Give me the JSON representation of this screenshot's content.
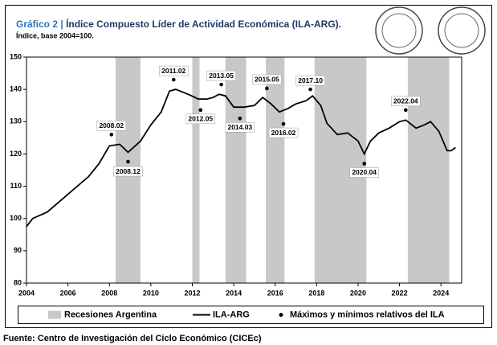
{
  "chart_data": {
    "type": "line",
    "title_label": "Gráfico 2 |",
    "title": "Índice Compuesto Líder de Actividad Económica (ILA-ARG).",
    "subtitle": "Índice, base 2004=100.",
    "source": "Fuente: Centro de Investigación del Ciclo Económico (CICEc)",
    "xlim": [
      2004,
      2025
    ],
    "xticks": [
      2004,
      2006,
      2008,
      2010,
      2012,
      2014,
      2016,
      2018,
      2020,
      2022,
      2024
    ],
    "ylim": [
      80,
      150
    ],
    "yticks": [
      80,
      90,
      100,
      110,
      120,
      130,
      140,
      150
    ],
    "recession_name": "Recesiones Argentina",
    "recession_color": "#c8c8c8",
    "recessions": [
      [
        2008.3,
        2009.5
      ],
      [
        2012.0,
        2012.35
      ],
      [
        2013.6,
        2014.6
      ],
      [
        2015.55,
        2016.45
      ],
      [
        2017.9,
        2020.4
      ],
      [
        2022.4,
        2024.4
      ]
    ],
    "series": [
      {
        "name": "ILA-ARG",
        "color": "#000000",
        "x": [
          2004.0,
          2004.3,
          2005.0,
          2006.0,
          2007.0,
          2007.5,
          2008.0,
          2008.5,
          2008.9,
          2009.5,
          2010.0,
          2010.5,
          2010.9,
          2011.2,
          2011.8,
          2012.3,
          2012.7,
          2013.0,
          2013.3,
          2013.6,
          2014.0,
          2014.5,
          2015.0,
          2015.4,
          2015.8,
          2016.2,
          2016.6,
          2017.0,
          2017.5,
          2017.8,
          2018.2,
          2018.5,
          2019.0,
          2019.5,
          2020.0,
          2020.3,
          2020.6,
          2021.0,
          2021.5,
          2022.0,
          2022.3,
          2022.8,
          2023.2,
          2023.5,
          2023.9,
          2024.3,
          2024.5,
          2024.7
        ],
        "values": [
          97.5,
          100,
          102,
          107.5,
          113,
          117,
          122.5,
          123,
          120.5,
          124,
          129,
          133,
          139.5,
          140,
          138.5,
          137,
          137,
          137.5,
          138.5,
          138,
          134.5,
          134.5,
          135,
          137.5,
          135.5,
          133,
          134,
          135.5,
          136.5,
          138,
          135,
          129.5,
          126,
          126.5,
          124,
          120,
          124,
          126.5,
          128,
          130,
          130.5,
          128,
          129,
          130,
          127,
          121,
          121,
          122
        ]
      }
    ],
    "points": {
      "name": "Máximos y mínimos relativos del ILA",
      "color": "#000000",
      "x": [
        2008.1,
        2008.9,
        2011.1,
        2012.4,
        2013.4,
        2014.3,
        2015.6,
        2016.4,
        2017.7,
        2020.3,
        2022.3
      ],
      "values": [
        126,
        117.6,
        143,
        133.6,
        141.5,
        131,
        140.3,
        129.3,
        140,
        117,
        133.6
      ],
      "labels": [
        "2008.02",
        "2008.12",
        "2011.02",
        "2012.05",
        "2013.05",
        "2014.03",
        "2015.05",
        "2016.02",
        "2017.10",
        "2020.04",
        "2022.04"
      ]
    }
  }
}
